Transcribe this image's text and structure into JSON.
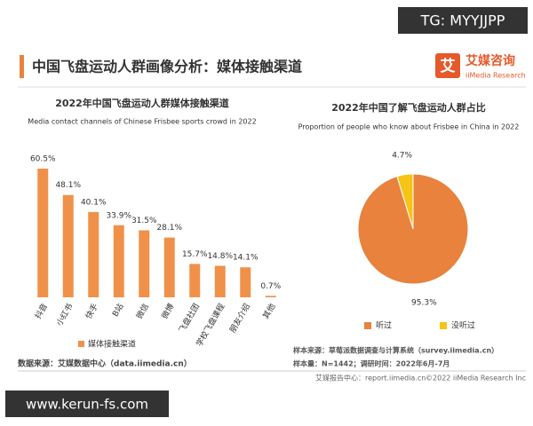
{
  "watermark_top": "TG: MYYJJPP",
  "header": {
    "title": "中国飞盘运动人群画像分析：媒体接触渠道",
    "logo_mark": "艾",
    "logo_cn": "艾媒咨询",
    "logo_en": "iiMedia Research"
  },
  "chart_data": [
    {
      "type": "bar",
      "title": "2022年中国飞盘运动人群媒体接触渠道",
      "subtitle": "Media contact channels of Chinese Frisbee sports crowd in 2022",
      "categories": [
        "抖音",
        "小红书",
        "快手",
        "B站",
        "微信",
        "微博",
        "飞盘社团",
        "学校飞盘课程",
        "朋友介绍",
        "其他"
      ],
      "series": [
        {
          "name": "媒体接触渠道",
          "color": "#f0914a",
          "values": [
            60.5,
            48.1,
            40.1,
            33.9,
            31.5,
            28.1,
            15.7,
            14.8,
            14.1,
            0.7
          ],
          "value_labels": [
            "60.5%",
            "48.1%",
            "40.1%",
            "33.9%",
            "31.5%",
            "28.1%",
            "15.7%",
            "14.8%",
            "14.1%",
            "0.7%"
          ]
        }
      ],
      "legend": "bottom-left"
    },
    {
      "type": "pie",
      "title": "2022年中国了解飞盘运动人群占比",
      "subtitle": "Proportion of people who know about Frisbee in China in 2022",
      "categories": [
        "听过",
        "没听过"
      ],
      "values": [
        95.3,
        4.7
      ],
      "value_labels": [
        "95.3%",
        "4.7%"
      ],
      "colors": [
        "#e8823d",
        "#f6c417"
      ],
      "legend": "bottom"
    }
  ],
  "source": "数据来源：艾媒数据中心（data.iimedia.cn）",
  "notes": [
    "样本来源：草莓派数据调查与计算系统（survey.iimedia.cn）",
    "样本量：N=1442；调研时间：2022年6月-7月"
  ],
  "footer": {
    "left": "艾媒报告中心：report.iimedia.cn",
    "right": "©2022 iiMedia Research Inc"
  },
  "watermark_bottom": "www.kerun-fs.com"
}
